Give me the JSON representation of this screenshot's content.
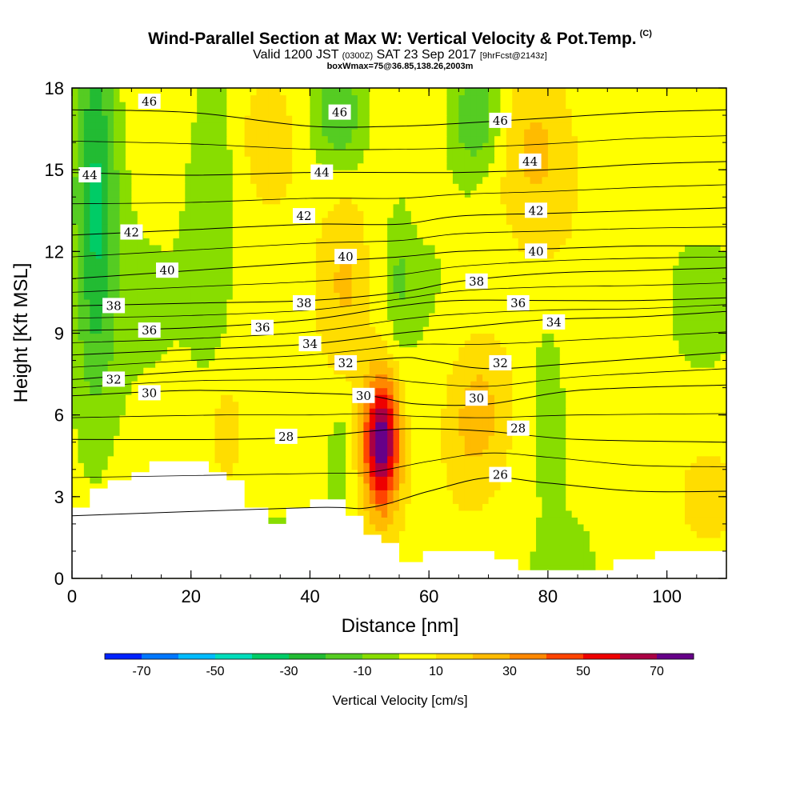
{
  "chart_data": {
    "type": "heatmap",
    "title": "Wind-Parallel Section at Max W: Vertical Velocity & Pot.Temp.",
    "title_mark": "(C)",
    "subtitle_main": "Valid 1200 JST",
    "subtitle_utc": "(0300Z)",
    "subtitle_date": "SAT 23 Sep 2017",
    "subtitle_fcst": "[9hrFcst@2143z]",
    "subtitle2": "boxWmax=75@36.85,138.26,2003m",
    "xlabel": "Distance [nm]",
    "ylabel": "Height [Kft MSL]",
    "xlim": [
      0,
      110
    ],
    "ylim": [
      0,
      18
    ],
    "x_ticks": [
      "0",
      "20",
      "40",
      "60",
      "80",
      "100"
    ],
    "y_ticks": [
      "0",
      "3",
      "6",
      "9",
      "12",
      "15",
      "18"
    ],
    "colorbar": {
      "label": "Vertical Velocity [cm/s]",
      "tick_labels": [
        "-70",
        "-50",
        "-30",
        "-10",
        "10",
        "30",
        "50",
        "70"
      ],
      "bins": [
        -80,
        -70,
        -60,
        -50,
        -40,
        -30,
        -20,
        -10,
        0,
        10,
        20,
        30,
        40,
        50,
        60,
        70,
        80
      ],
      "colors": [
        "#0022ff",
        "#0077ff",
        "#00bbff",
        "#00ddbb",
        "#00cc66",
        "#22bb33",
        "#55cc22",
        "#88dd00",
        "#ffff00",
        "#ffdd00",
        "#ffbb00",
        "#ff8800",
        "#ff4400",
        "#ee0000",
        "#aa0044",
        "#660088"
      ]
    },
    "field_features": [
      {
        "name": "updraft-max",
        "x": 52,
        "y": 5.0,
        "w": 75,
        "sx": 2.2,
        "sy": 1.8
      },
      {
        "name": "updraft-68",
        "x": 68,
        "y": 6.0,
        "w": 22,
        "sx": 4,
        "sy": 2.2
      },
      {
        "name": "updraft-26",
        "x": 26,
        "y": 5.3,
        "w": 18,
        "sx": 1.5,
        "sy": 1.2
      },
      {
        "name": "upper-updraft-46",
        "x": 46,
        "y": 11,
        "w": 18,
        "sx": 3,
        "sy": 2.5
      },
      {
        "name": "upper-updraft-78",
        "x": 78,
        "y": 16,
        "w": 20,
        "sx": 5,
        "sy": 2.5
      },
      {
        "name": "upper-updraft-33",
        "x": 33,
        "y": 16.5,
        "w": 15,
        "sx": 4,
        "sy": 2
      },
      {
        "name": "low-updraft-107",
        "x": 107,
        "y": 3.2,
        "w": 15,
        "sx": 3,
        "sy": 1
      },
      {
        "name": "downdraft-4",
        "x": 4,
        "y": 14,
        "w": -35,
        "sx": 2.5,
        "sy": 5
      },
      {
        "name": "downdraft-45",
        "x": 45,
        "y": 17,
        "w": -22,
        "sx": 3,
        "sy": 1.5
      },
      {
        "name": "downdraft-68",
        "x": 68,
        "y": 17,
        "w": -25,
        "sx": 3,
        "sy": 1.5
      },
      {
        "name": "downdraft-80",
        "x": 80,
        "y": 7,
        "w": -12,
        "sx": 2,
        "sy": 2
      },
      {
        "name": "downdraft-45-low",
        "x": 45,
        "y": 4.2,
        "w": -12,
        "sx": 1.2,
        "sy": 1.3
      },
      {
        "name": "downdraft-55",
        "x": 55,
        "y": 11,
        "w": -12,
        "sx": 1.3,
        "sy": 1.5
      },
      {
        "name": "downdraft-24",
        "x": 24,
        "y": 14,
        "w": -10,
        "sx": 3,
        "sy": 4
      }
    ],
    "terrain": {
      "x": [
        0,
        3,
        3,
        6,
        6,
        10,
        10,
        13,
        13,
        23,
        23,
        26,
        26,
        29,
        29,
        33,
        33,
        36,
        36,
        40,
        40,
        46,
        46,
        49,
        49,
        52,
        52,
        55,
        55,
        59,
        59,
        71,
        71,
        75,
        75,
        91,
        91,
        98,
        98,
        110
      ],
      "y": [
        2.6,
        2.6,
        3.3,
        3.3,
        3.6,
        3.6,
        3.9,
        3.9,
        4.3,
        4.3,
        3.9,
        3.9,
        3.6,
        3.6,
        2.6,
        2.6,
        2.0,
        2.0,
        2.6,
        2.6,
        2.9,
        2.9,
        2.3,
        2.3,
        1.6,
        1.6,
        1.3,
        1.3,
        0.6,
        0.6,
        1.0,
        1.0,
        0.7,
        0.7,
        0.3,
        0.3,
        0.7,
        0.7,
        1.0,
        1.0
      ]
    },
    "theta_contours": [
      {
        "label": "26",
        "x": [
          0,
          40,
          50,
          60,
          70,
          80,
          95,
          110
        ],
        "y": [
          2.3,
          2.6,
          2.6,
          3.2,
          3.7,
          3.5,
          3.2,
          3.2
        ],
        "label_at": [
          72,
          3.8
        ]
      },
      {
        "label": "28",
        "x": [
          0,
          25,
          40,
          50,
          58,
          70,
          85,
          110
        ],
        "y": [
          5.1,
          5.1,
          5.2,
          5.4,
          5.5,
          5.4,
          5.1,
          5.0
        ],
        "label_at": [
          36,
          5.2
        ]
      },
      {
        "label": "30",
        "x": [
          0,
          20,
          40,
          50,
          58,
          70,
          85,
          110
        ],
        "y": [
          6.7,
          6.9,
          6.8,
          6.7,
          6.4,
          6.4,
          6.9,
          7.1
        ],
        "label_at": [
          13,
          6.8
        ]
      },
      {
        "label": "32",
        "x": [
          0,
          20,
          40,
          55,
          60,
          70,
          85,
          110
        ],
        "y": [
          7.3,
          7.6,
          7.8,
          8.1,
          8.0,
          7.7,
          7.9,
          8.3
        ],
        "label_at": [
          7,
          7.3
        ]
      },
      {
        "label": "34",
        "x": [
          0,
          20,
          40,
          55,
          65,
          80,
          95,
          110
        ],
        "y": [
          8.2,
          8.4,
          8.6,
          9.0,
          9.2,
          9.5,
          9.6,
          9.8
        ],
        "label_at": [
          40,
          8.6
        ]
      },
      {
        "label": "36",
        "x": [
          0,
          20,
          40,
          55,
          65,
          80,
          95,
          110
        ],
        "y": [
          9.1,
          9.2,
          9.5,
          10.0,
          10.2,
          10.2,
          10.2,
          10.3
        ],
        "label_at": [
          13,
          9.1
        ]
      },
      {
        "label": "38",
        "x": [
          0,
          20,
          40,
          55,
          65,
          80,
          95,
          110
        ],
        "y": [
          10.0,
          10.1,
          10.2,
          10.5,
          10.9,
          11.2,
          11.3,
          11.4
        ],
        "label_at": [
          7,
          10.0
        ]
      },
      {
        "label": "40",
        "x": [
          0,
          20,
          40,
          55,
          65,
          80,
          95,
          110
        ],
        "y": [
          11.0,
          11.3,
          11.6,
          11.8,
          12.0,
          12.1,
          12.2,
          12.2
        ],
        "label_at": [
          16,
          11.3
        ]
      },
      {
        "label": "42",
        "x": [
          0,
          20,
          40,
          55,
          65,
          80,
          95,
          110
        ],
        "y": [
          12.6,
          12.8,
          13.0,
          13.0,
          13.3,
          13.4,
          13.5,
          13.6
        ],
        "label_at": [
          10,
          12.7
        ]
      },
      {
        "label": "44",
        "x": [
          0,
          20,
          40,
          55,
          65,
          80,
          95,
          110
        ],
        "y": [
          14.9,
          14.8,
          14.9,
          14.9,
          14.9,
          15.0,
          15.2,
          15.3
        ],
        "label_at": [
          3,
          14.8
        ]
      },
      {
        "label": "46",
        "x": [
          0,
          20,
          40,
          55,
          65,
          80,
          95,
          110
        ],
        "y": [
          17.2,
          17.1,
          16.6,
          16.6,
          16.7,
          16.9,
          17.1,
          17.2
        ],
        "label_at": [
          13,
          17.5
        ]
      }
    ],
    "contour_labels": [
      {
        "text": "46",
        "x": 13,
        "y": 17.5
      },
      {
        "text": "46",
        "x": 45,
        "y": 17.1
      },
      {
        "text": "46",
        "x": 72,
        "y": 16.8
      },
      {
        "text": "44",
        "x": 3,
        "y": 14.8
      },
      {
        "text": "44",
        "x": 42,
        "y": 14.9
      },
      {
        "text": "44",
        "x": 77,
        "y": 15.3
      },
      {
        "text": "42",
        "x": 10,
        "y": 12.7
      },
      {
        "text": "42",
        "x": 39,
        "y": 13.3
      },
      {
        "text": "42",
        "x": 78,
        "y": 13.5
      },
      {
        "text": "40",
        "x": 16,
        "y": 11.3
      },
      {
        "text": "40",
        "x": 46,
        "y": 11.8
      },
      {
        "text": "40",
        "x": 78,
        "y": 12.0
      },
      {
        "text": "38",
        "x": 7,
        "y": 10.0
      },
      {
        "text": "38",
        "x": 39,
        "y": 10.1
      },
      {
        "text": "38",
        "x": 68,
        "y": 10.9
      },
      {
        "text": "36",
        "x": 13,
        "y": 9.1
      },
      {
        "text": "36",
        "x": 32,
        "y": 9.2
      },
      {
        "text": "36",
        "x": 75,
        "y": 10.1
      },
      {
        "text": "34",
        "x": 40,
        "y": 8.6
      },
      {
        "text": "34",
        "x": 81,
        "y": 9.4
      },
      {
        "text": "32",
        "x": 7,
        "y": 7.3
      },
      {
        "text": "32",
        "x": 46,
        "y": 7.9
      },
      {
        "text": "32",
        "x": 72,
        "y": 7.9
      },
      {
        "text": "30",
        "x": 13,
        "y": 6.8
      },
      {
        "text": "30",
        "x": 49,
        "y": 6.7
      },
      {
        "text": "30",
        "x": 68,
        "y": 6.6
      },
      {
        "text": "28",
        "x": 36,
        "y": 5.2
      },
      {
        "text": "28",
        "x": 75,
        "y": 5.5
      },
      {
        "text": "26",
        "x": 72,
        "y": 3.8
      }
    ]
  }
}
